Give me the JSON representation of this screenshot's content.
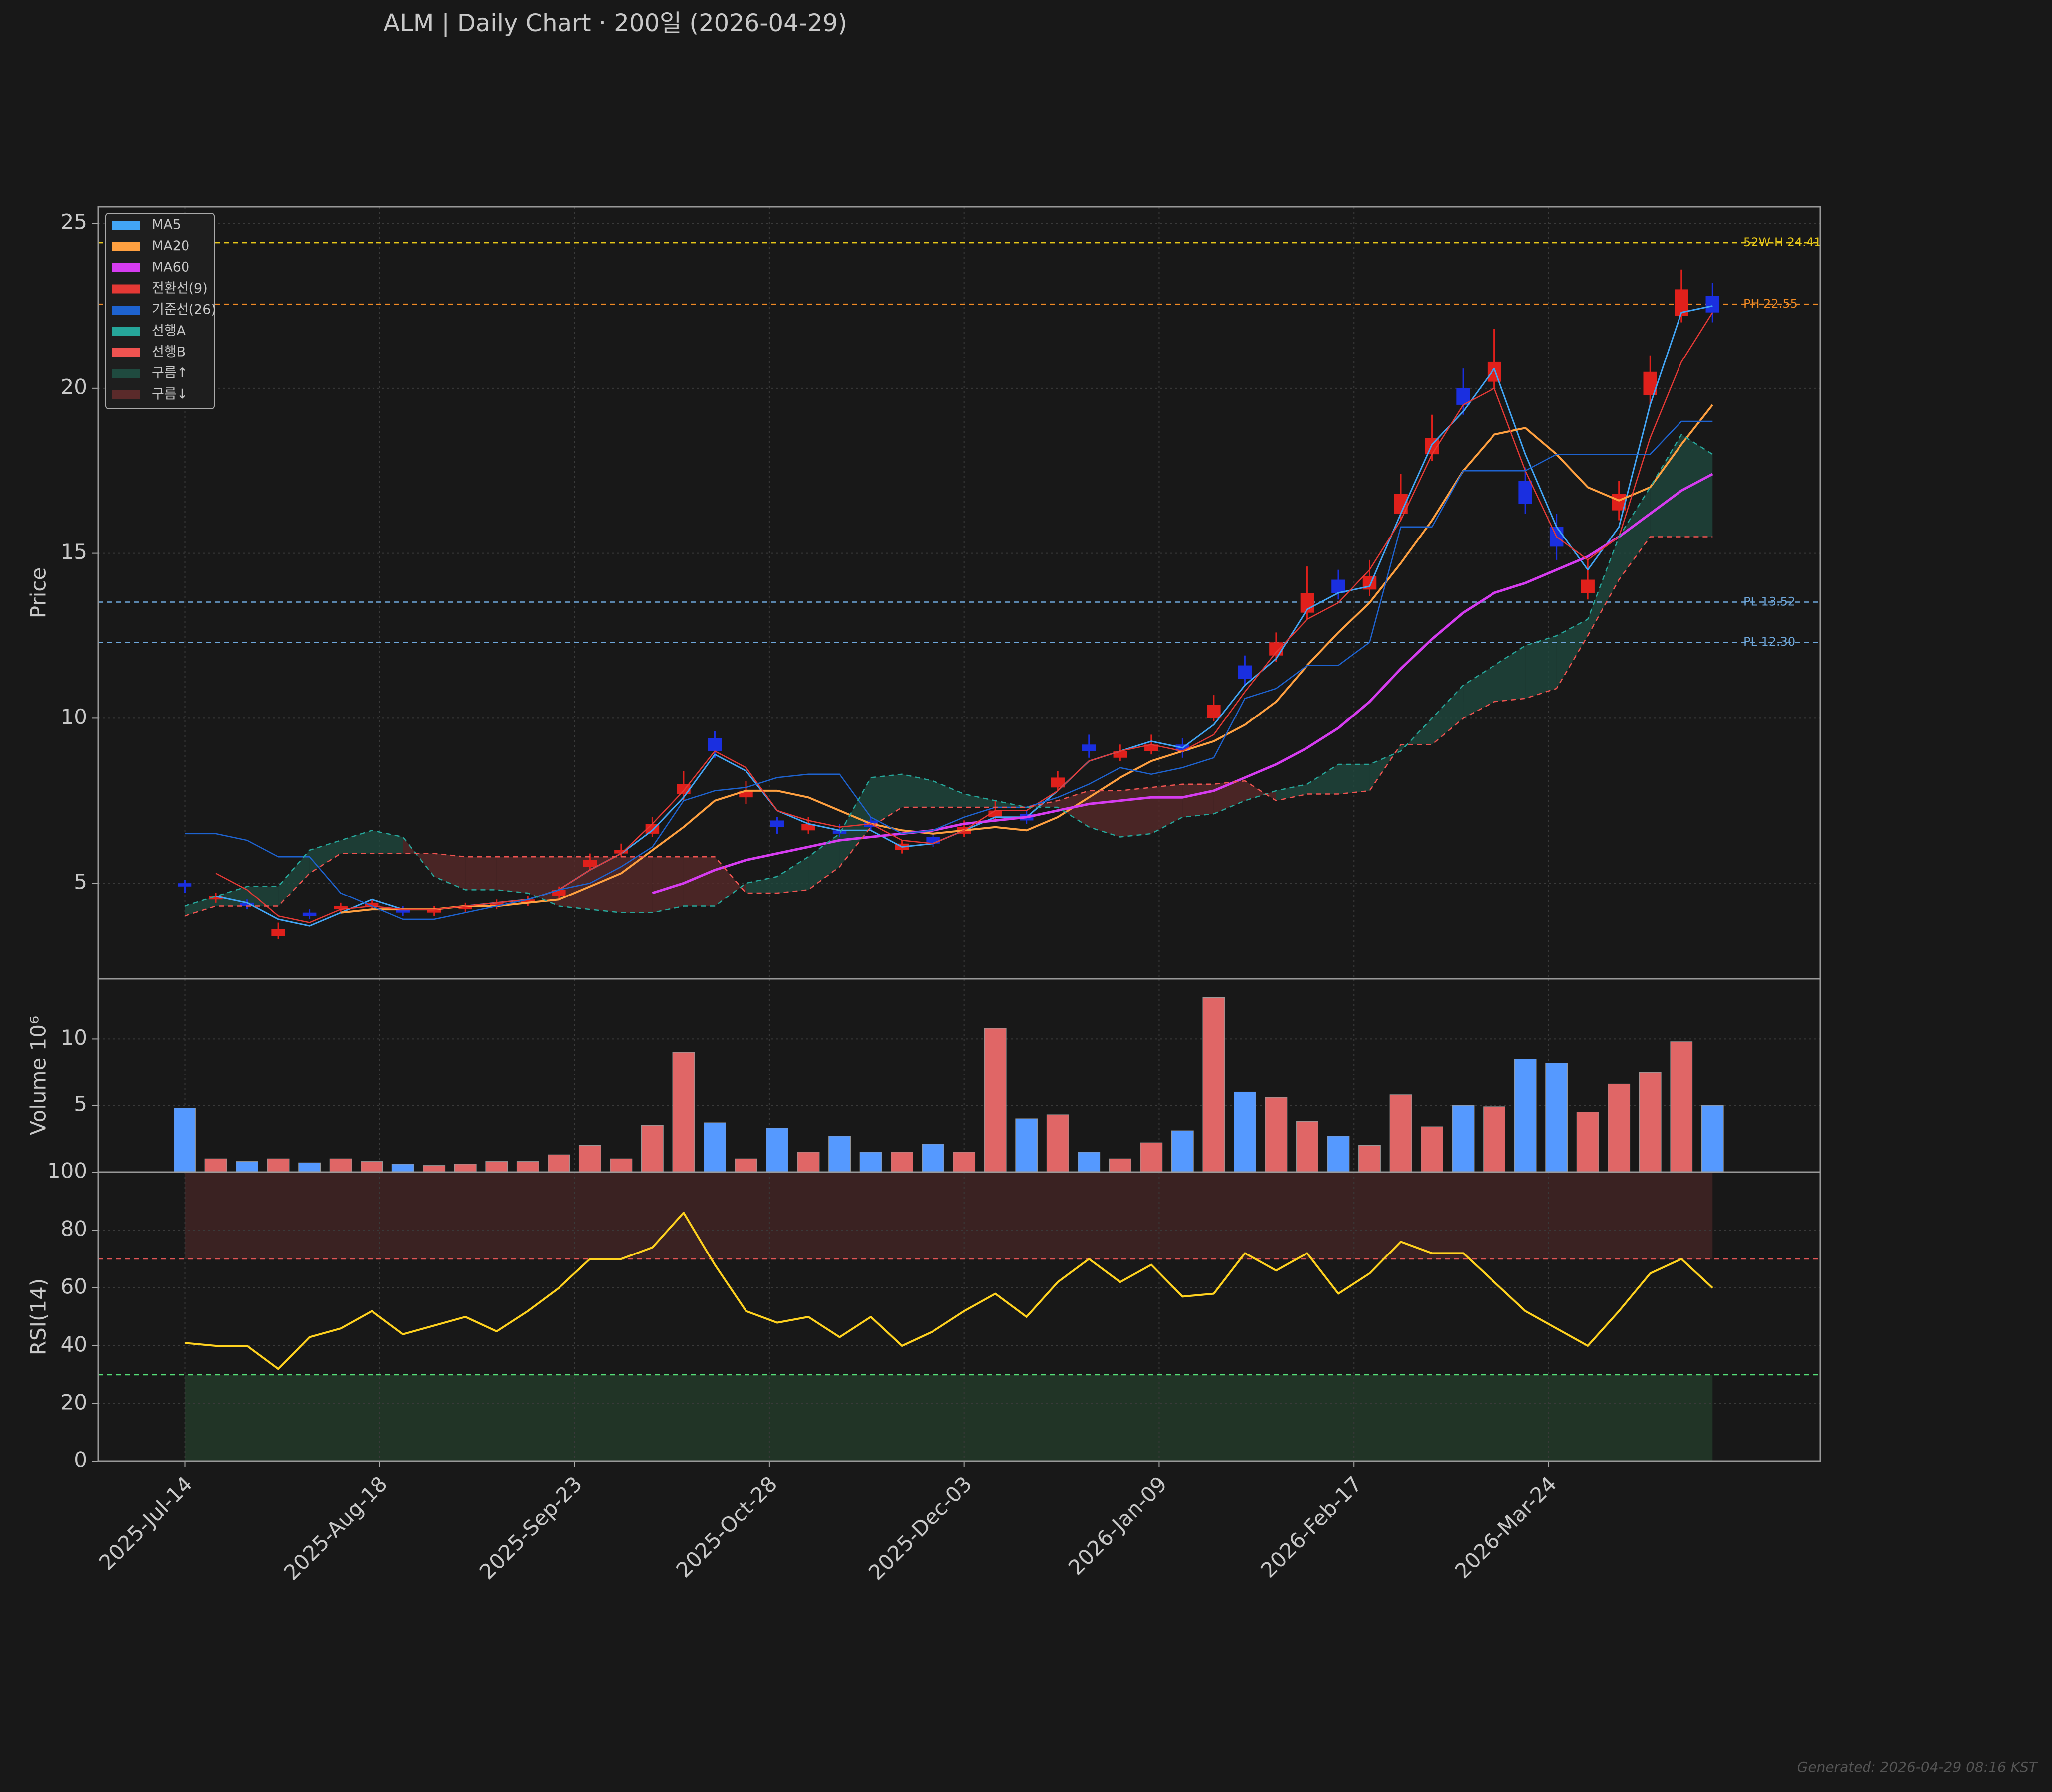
{
  "title": "ALM  |  Daily Chart · 200일  (2026-04-29)",
  "footer": "Generated: 2026-04-29 08:16 KST",
  "chart_data": [
    {
      "type": "candlestick",
      "ylabel": "Price",
      "x": [
        0,
        4,
        8,
        12,
        16,
        20,
        24,
        28,
        32,
        36,
        40,
        44,
        48,
        52,
        56,
        60,
        64,
        68,
        72,
        76,
        80,
        84,
        88,
        92,
        96,
        100,
        104,
        108,
        112,
        116,
        120,
        124,
        128,
        132,
        136,
        140,
        144,
        148,
        152,
        156,
        160,
        164,
        168,
        172,
        176,
        180,
        184,
        188,
        192,
        196
      ],
      "open": [
        5.0,
        4.5,
        4.4,
        3.4,
        4.1,
        4.2,
        4.3,
        4.2,
        4.1,
        4.2,
        4.3,
        4.4,
        4.6,
        5.5,
        5.9,
        6.5,
        7.7,
        9.4,
        7.6,
        6.9,
        6.6,
        6.6,
        6.9,
        6.0,
        6.4,
        6.5,
        7.0,
        7.1,
        7.9,
        9.2,
        8.8,
        9.0,
        9.2,
        10.0,
        11.6,
        11.9,
        13.2,
        14.2,
        13.9,
        16.2,
        18.0,
        20.0,
        20.2,
        17.2,
        15.8,
        13.8,
        16.3,
        19.8,
        22.2,
        22.8
      ],
      "high": [
        5.1,
        4.7,
        4.5,
        3.8,
        4.2,
        4.4,
        4.5,
        4.3,
        4.3,
        4.4,
        4.5,
        4.6,
        4.9,
        5.9,
        6.2,
        7.0,
        8.4,
        9.6,
        8.1,
        7.0,
        7.0,
        6.8,
        7.0,
        6.3,
        6.5,
        6.9,
        7.5,
        7.2,
        8.4,
        9.5,
        9.2,
        9.5,
        9.4,
        10.7,
        11.9,
        12.6,
        14.6,
        14.5,
        14.8,
        17.4,
        19.2,
        20.6,
        21.8,
        17.6,
        16.2,
        14.8,
        17.2,
        21.0,
        23.6,
        23.2
      ],
      "low": [
        4.7,
        4.4,
        4.2,
        3.3,
        3.9,
        4.1,
        4.2,
        4.0,
        4.0,
        4.1,
        4.2,
        4.3,
        4.5,
        5.4,
        5.8,
        6.4,
        7.5,
        8.8,
        7.4,
        6.5,
        6.5,
        6.4,
        6.6,
        5.9,
        6.1,
        6.4,
        6.9,
        6.8,
        7.8,
        8.8,
        8.7,
        8.9,
        8.8,
        9.9,
        11.0,
        11.7,
        13.0,
        13.6,
        13.7,
        16.0,
        17.8,
        19.2,
        20.0,
        16.2,
        14.8,
        13.6,
        16.0,
        19.5,
        22.0,
        22.0
      ],
      "close": [
        4.9,
        4.6,
        4.3,
        3.6,
        4.0,
        4.3,
        4.4,
        4.1,
        4.2,
        4.3,
        4.4,
        4.5,
        4.8,
        5.7,
        6.0,
        6.8,
        8.0,
        9.0,
        7.8,
        6.7,
        6.8,
        6.5,
        6.7,
        6.2,
        6.2,
        6.7,
        7.2,
        6.9,
        8.2,
        9.0,
        9.0,
        9.2,
        9.0,
        10.4,
        11.2,
        12.3,
        13.8,
        13.8,
        14.3,
        16.8,
        18.5,
        19.5,
        20.8,
        16.5,
        15.2,
        14.2,
        16.8,
        20.5,
        23.0,
        22.3
      ],
      "up_color": "#e0201b",
      "down_color": "#1a2fe0",
      "series": [
        {
          "name": "MA5",
          "color": "#42a5f5",
          "width": 3,
          "values": [
            null,
            4.6,
            4.4,
            3.9,
            3.7,
            4.1,
            4.5,
            4.2,
            4.2,
            4.3,
            4.4,
            4.5,
            4.8,
            5.4,
            5.9,
            6.6,
            7.6,
            8.9,
            8.4,
            7.2,
            6.8,
            6.6,
            6.6,
            6.1,
            6.2,
            6.6,
            7.0,
            7.0,
            7.8,
            8.7,
            9.0,
            9.3,
            9.1,
            9.8,
            11.0,
            11.8,
            13.3,
            13.8,
            14.0,
            16.2,
            18.3,
            19.3,
            20.6,
            18.0,
            15.8,
            14.5,
            15.8,
            19.5,
            22.3,
            22.5
          ]
        },
        {
          "name": "MA20",
          "color": "#ffa040",
          "width": 4,
          "values": [
            null,
            null,
            null,
            null,
            null,
            4.1,
            4.2,
            4.2,
            4.2,
            4.3,
            4.3,
            4.4,
            4.5,
            4.9,
            5.3,
            6.0,
            6.7,
            7.5,
            7.8,
            7.8,
            7.6,
            7.2,
            6.8,
            6.6,
            6.5,
            6.6,
            6.7,
            6.6,
            7.0,
            7.6,
            8.2,
            8.7,
            9.0,
            9.3,
            9.8,
            10.5,
            11.6,
            12.6,
            13.5,
            14.7,
            16.0,
            17.5,
            18.6,
            18.8,
            18.0,
            17.0,
            16.6,
            17.0,
            18.3,
            19.5
          ]
        },
        {
          "name": "MA60",
          "color": "#d63cf0",
          "width": 5,
          "values": [
            null,
            null,
            null,
            null,
            null,
            null,
            null,
            null,
            null,
            null,
            null,
            null,
            null,
            null,
            null,
            4.7,
            5.0,
            5.4,
            5.7,
            5.9,
            6.1,
            6.3,
            6.4,
            6.5,
            6.6,
            6.8,
            6.9,
            7.0,
            7.2,
            7.4,
            7.5,
            7.6,
            7.6,
            7.8,
            8.2,
            8.6,
            9.1,
            9.7,
            10.5,
            11.5,
            12.4,
            13.2,
            13.8,
            14.1,
            14.5,
            14.9,
            15.5,
            16.2,
            16.9,
            17.4
          ]
        },
        {
          "name": "전환선(9)",
          "color": "#e53935",
          "width": 2.5,
          "values": [
            null,
            5.3,
            4.8,
            4.0,
            3.8,
            4.2,
            4.3,
            4.2,
            4.2,
            4.3,
            4.4,
            4.5,
            4.8,
            5.4,
            5.9,
            6.8,
            7.8,
            9.0,
            8.5,
            7.2,
            6.9,
            6.7,
            6.8,
            6.3,
            6.2,
            6.6,
            7.2,
            7.2,
            7.8,
            8.7,
            9.0,
            9.2,
            9.0,
            9.5,
            10.8,
            12.0,
            13.0,
            13.5,
            14.5,
            16.0,
            18.0,
            19.5,
            20.0,
            17.5,
            15.5,
            14.8,
            15.5,
            18.5,
            20.8,
            22.3
          ]
        },
        {
          "name": "기준선(26)",
          "color": "#1e63d0",
          "width": 2.5,
          "values": [
            6.5,
            6.5,
            6.3,
            5.8,
            5.8,
            4.7,
            4.3,
            3.9,
            3.9,
            4.1,
            4.3,
            4.5,
            4.8,
            5.0,
            5.5,
            6.1,
            7.5,
            7.8,
            7.9,
            8.2,
            8.3,
            8.3,
            7.0,
            6.5,
            6.6,
            7.0,
            7.3,
            7.3,
            7.6,
            8.0,
            8.5,
            8.3,
            8.5,
            8.8,
            10.6,
            10.9,
            11.6,
            11.6,
            12.3,
            15.8,
            15.8,
            17.5,
            17.5,
            17.5,
            18.0,
            18.0,
            18.0,
            18.0,
            19.0,
            19.0
          ]
        },
        {
          "name": "선행A",
          "color": "#26a69a",
          "width": 2.5,
          "dash": true,
          "values": [
            4.3,
            4.6,
            4.9,
            4.9,
            6.0,
            6.3,
            6.6,
            6.4,
            5.2,
            4.8,
            4.8,
            4.7,
            4.3,
            4.2,
            4.1,
            4.1,
            4.3,
            4.3,
            5.0,
            5.2,
            5.8,
            6.5,
            8.2,
            8.3,
            8.1,
            7.7,
            7.5,
            7.3,
            7.3,
            6.7,
            6.4,
            6.5,
            7.0,
            7.1,
            7.5,
            7.8,
            8.0,
            8.6,
            8.6,
            9.0,
            10.0,
            11.0,
            11.6,
            12.2,
            12.5,
            13.0,
            15.5,
            17.0,
            18.6,
            18.0
          ]
        },
        {
          "name": "선행B",
          "color": "#ef5350",
          "width": 2.5,
          "dash": true,
          "values": [
            4.0,
            4.3,
            4.3,
            4.3,
            5.3,
            5.9,
            5.9,
            5.9,
            5.9,
            5.8,
            5.8,
            5.8,
            5.8,
            5.8,
            5.8,
            5.8,
            5.8,
            5.8,
            4.7,
            4.7,
            4.8,
            5.5,
            6.7,
            7.3,
            7.3,
            7.3,
            7.3,
            7.3,
            7.5,
            7.8,
            7.8,
            7.9,
            8.0,
            8.0,
            8.1,
            7.5,
            7.7,
            7.7,
            7.8,
            9.2,
            9.2,
            10.0,
            10.5,
            10.6,
            10.9,
            12.5,
            14.2,
            15.5,
            15.5,
            15.5
          ]
        }
      ],
      "cloud": [
        {
          "name": "구름↑",
          "color": "#1f4a3f"
        },
        {
          "name": "구름↓",
          "color": "#5a2a2a"
        }
      ],
      "hlines": [
        {
          "value": 24.41,
          "label": "52W-H 24.41",
          "color": "#e6c619"
        },
        {
          "value": 22.55,
          "label": "PH 22.55",
          "color": "#f08a24"
        },
        {
          "value": 13.52,
          "label": "PL 13.52",
          "color": "#6fa8dc"
        },
        {
          "value": 12.3,
          "label": "PL 12.30",
          "color": "#6fa8dc"
        }
      ],
      "xlim": [
        -11.1,
        209.8
      ],
      "ylim": [
        2.1,
        25.5
      ],
      "yticks": [
        5,
        10,
        15,
        20,
        25
      ],
      "grid": true
    },
    {
      "type": "bar",
      "ylabel": "Volume  10⁶",
      "x": [
        0,
        4,
        8,
        12,
        16,
        20,
        24,
        28,
        32,
        36,
        40,
        44,
        48,
        52,
        56,
        60,
        64,
        68,
        72,
        76,
        80,
        84,
        88,
        92,
        96,
        100,
        104,
        108,
        112,
        116,
        120,
        124,
        128,
        132,
        136,
        140,
        144,
        148,
        152,
        156,
        160,
        164,
        168,
        172,
        176,
        180,
        184,
        188,
        192,
        196
      ],
      "values": [
        4.8,
        1.0,
        0.8,
        1.0,
        0.7,
        1.0,
        0.8,
        0.6,
        0.5,
        0.6,
        0.8,
        0.8,
        1.3,
        2.0,
        1.0,
        3.5,
        9.0,
        3.7,
        1.0,
        3.3,
        1.5,
        2.7,
        1.5,
        1.5,
        2.1,
        1.5,
        10.8,
        4.0,
        4.3,
        1.5,
        1.0,
        2.2,
        3.1,
        13.1,
        6.0,
        5.6,
        3.8,
        2.7,
        2.0,
        5.8,
        3.4,
        5.0,
        4.9,
        8.5,
        8.2,
        4.5,
        6.6,
        7.5,
        9.8,
        5.0
      ],
      "up_color": "#e06666",
      "down_color": "#5599ff",
      "xlim": [
        -11.1,
        209.8
      ],
      "ylim": [
        0,
        14.5
      ],
      "yticks": [
        5,
        10
      ],
      "grid": true
    },
    {
      "type": "line",
      "ylabel": "RSI(14)",
      "x": [
        0,
        4,
        8,
        12,
        16,
        20,
        24,
        28,
        32,
        36,
        40,
        44,
        48,
        52,
        56,
        60,
        64,
        68,
        72,
        76,
        80,
        84,
        88,
        92,
        96,
        100,
        104,
        108,
        112,
        116,
        120,
        124,
        128,
        132,
        136,
        140,
        144,
        148,
        152,
        156,
        160,
        164,
        168,
        172,
        176,
        180,
        184,
        188,
        192,
        196
      ],
      "values": [
        41,
        40,
        40,
        32,
        43,
        46,
        52,
        44,
        47,
        50,
        45,
        52,
        60,
        70,
        70,
        74,
        86,
        68,
        52,
        48,
        50,
        43,
        50,
        40,
        45,
        52,
        58,
        50,
        62,
        70,
        62,
        68,
        57,
        58,
        72,
        66,
        72,
        58,
        65,
        76,
        72,
        72,
        62,
        52,
        46,
        40,
        52,
        65,
        70,
        60
      ],
      "color": "#ffd21f",
      "bands": [
        {
          "from": 70,
          "to": 100,
          "color": "#3a2222"
        },
        {
          "from": 0,
          "to": 30,
          "color": "#213426"
        }
      ],
      "hlines": [
        {
          "value": 70,
          "color": "#e05555"
        },
        {
          "value": 30,
          "color": "#55dd77"
        }
      ],
      "xlim": [
        -11.1,
        209.8
      ],
      "ylim": [
        0,
        100
      ],
      "yticks": [
        0,
        20,
        40,
        60,
        80,
        100
      ],
      "xticks": [
        {
          "value": 0,
          "label": "2025-Jul-14"
        },
        {
          "value": 25,
          "label": "2025-Aug-18"
        },
        {
          "value": 50,
          "label": "2025-Sep-23"
        },
        {
          "value": 75,
          "label": "2025-Oct-28"
        },
        {
          "value": 100,
          "label": "2025-Dec-03"
        },
        {
          "value": 125,
          "label": "2026-Jan-09"
        },
        {
          "value": 150,
          "label": "2026-Feb-17"
        },
        {
          "value": 175,
          "label": "2026-Mar-24"
        }
      ],
      "grid": true
    }
  ]
}
